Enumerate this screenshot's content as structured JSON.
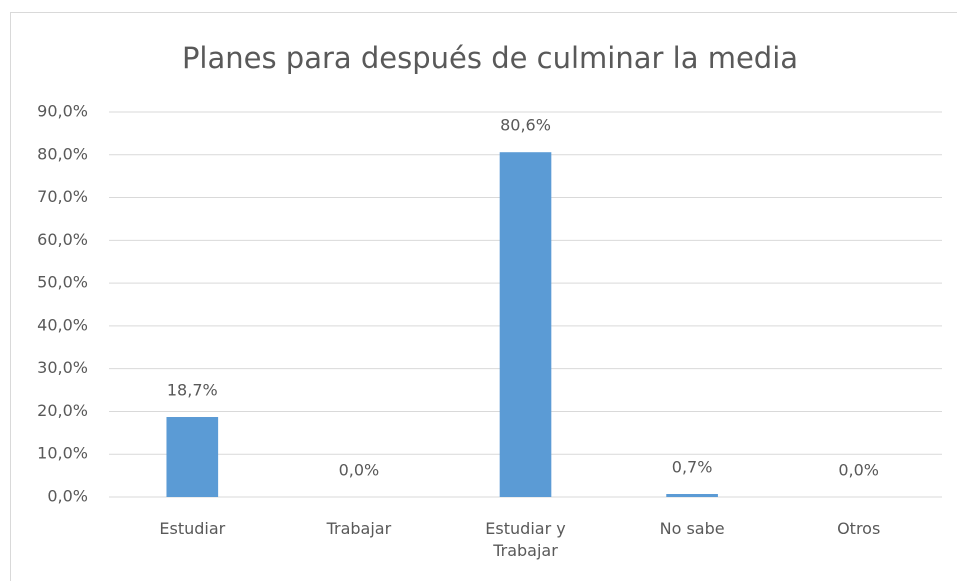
{
  "chart_data": {
    "type": "bar",
    "title": "Planes para después de culminar la media",
    "categories": [
      "Estudiar",
      "Trabajar",
      "Estudiar y Trabajar",
      "No sabe",
      "Otros"
    ],
    "values": [
      18.7,
      0,
      80.6,
      0.7,
      0
    ],
    "value_labels": [
      "18,7%",
      "0,0%",
      "80,6%",
      "0,7%",
      "0,0%"
    ],
    "color": "#5b9bd5",
    "ylim": [
      0,
      90
    ],
    "yticks": [
      {
        "value": 0,
        "label": "0,0%"
      },
      {
        "value": 10,
        "label": "10,0%"
      },
      {
        "value": 20,
        "label": "20,0%"
      },
      {
        "value": 30,
        "label": "30,0%"
      },
      {
        "value": 40,
        "label": "40,0%"
      },
      {
        "value": 50,
        "label": "50,0%"
      },
      {
        "value": 60,
        "label": "60,0%"
      },
      {
        "value": 70,
        "label": "70,0%"
      },
      {
        "value": 80,
        "label": "80,0%"
      },
      {
        "value": 90,
        "label": "90,0%"
      }
    ],
    "grid": true
  }
}
